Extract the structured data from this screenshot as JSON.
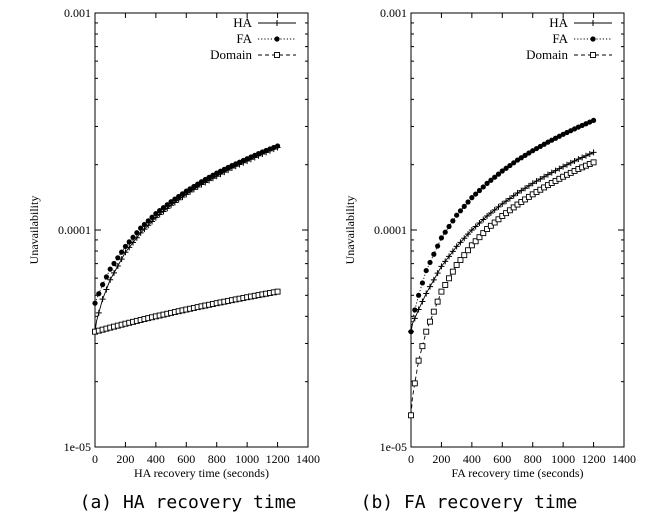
{
  "chart_data": [
    {
      "type": "line",
      "caption": "(a) HA recovery time",
      "xlabel": "HA recovery time (seconds)",
      "ylabel": "Unavailability",
      "xlim": [
        0,
        1400
      ],
      "ylim": [
        1e-05,
        0.001
      ],
      "yscale": "log",
      "x_ticks": [
        "0",
        "200",
        "400",
        "600",
        "800",
        "1000",
        "1200",
        "1400"
      ],
      "y_ticks": [
        "1e-05",
        "0.0001",
        "0.001"
      ],
      "legend_position": "top-right",
      "series": [
        {
          "name": "HA",
          "marker": "plus",
          "dash": "solid",
          "points": [
            [
              0,
              3.4e-05
            ],
            [
              10,
              3.8e-05
            ],
            [
              50,
              4.8e-05
            ],
            [
              100,
              5.9e-05
            ],
            [
              200,
              7.9e-05
            ],
            [
              300,
              9.7e-05
            ],
            [
              400,
              0.000114
            ],
            [
              500,
              0.00013
            ],
            [
              600,
              0.000146
            ],
            [
              700,
              0.000162
            ],
            [
              800,
              0.000177
            ],
            [
              900,
              0.000193
            ],
            [
              1000,
              0.000208
            ],
            [
              1100,
              0.000224
            ],
            [
              1200,
              0.00024
            ]
          ]
        },
        {
          "name": "FA",
          "marker": "dot",
          "dash": "dotted",
          "points": [
            [
              0,
              4.6e-05
            ],
            [
              10,
              4.8e-05
            ],
            [
              50,
              5.6e-05
            ],
            [
              100,
              6.6e-05
            ],
            [
              200,
              8.4e-05
            ],
            [
              300,
              0.000102
            ],
            [
              400,
              0.000119
            ],
            [
              500,
              0.000135
            ],
            [
              600,
              0.000151
            ],
            [
              700,
              0.000167
            ],
            [
              800,
              0.000183
            ],
            [
              900,
              0.000198
            ],
            [
              1000,
              0.000213
            ],
            [
              1100,
              0.000229
            ],
            [
              1200,
              0.000244
            ]
          ]
        },
        {
          "name": "Domain",
          "marker": "square",
          "dash": "dashed",
          "points": [
            [
              0,
              3.4e-05
            ],
            [
              100,
              3.55e-05
            ],
            [
              200,
              3.7e-05
            ],
            [
              300,
              3.85e-05
            ],
            [
              400,
              4e-05
            ],
            [
              500,
              4.15e-05
            ],
            [
              600,
              4.3e-05
            ],
            [
              700,
              4.45e-05
            ],
            [
              800,
              4.6e-05
            ],
            [
              900,
              4.75e-05
            ],
            [
              1000,
              4.9e-05
            ],
            [
              1100,
              5.05e-05
            ],
            [
              1200,
              5.2e-05
            ]
          ]
        }
      ]
    },
    {
      "type": "line",
      "caption": "(b) FA recovery time",
      "xlabel": "FA recovery time (seconds)",
      "ylabel": "Unavailability",
      "xlim": [
        0,
        1400
      ],
      "ylim": [
        1e-05,
        0.001
      ],
      "yscale": "log",
      "x_ticks": [
        "0",
        "200",
        "400",
        "600",
        "800",
        "1000",
        "1200",
        "1400"
      ],
      "y_ticks": [
        "1e-05",
        "0.0001",
        "0.001"
      ],
      "legend_position": "top-right",
      "series": [
        {
          "name": "HA",
          "marker": "plus",
          "dash": "solid",
          "points": [
            [
              0,
              3.4e-05
            ],
            [
              10,
              3.7e-05
            ],
            [
              50,
              4.3e-05
            ],
            [
              100,
              5.1e-05
            ],
            [
              200,
              6.8e-05
            ],
            [
              300,
              8.4e-05
            ],
            [
              400,
              0.0001
            ],
            [
              500,
              0.000116
            ],
            [
              600,
              0.000132
            ],
            [
              700,
              0.000148
            ],
            [
              800,
              0.000164
            ],
            [
              900,
              0.00018
            ],
            [
              1000,
              0.000196
            ],
            [
              1100,
              0.000212
            ],
            [
              1200,
              0.000228
            ]
          ]
        },
        {
          "name": "FA",
          "marker": "dot",
          "dash": "dotted",
          "points": [
            [
              0,
              3.4e-05
            ],
            [
              10,
              3.9e-05
            ],
            [
              50,
              5e-05
            ],
            [
              100,
              6.5e-05
            ],
            [
              200,
              9.2e-05
            ],
            [
              300,
              0.000117
            ],
            [
              400,
              0.000141
            ],
            [
              500,
              0.000164
            ],
            [
              600,
              0.000187
            ],
            [
              700,
              0.00021
            ],
            [
              800,
              0.000232
            ],
            [
              900,
              0.000254
            ],
            [
              1000,
              0.000276
            ],
            [
              1100,
              0.000298
            ],
            [
              1200,
              0.00032
            ]
          ]
        },
        {
          "name": "Domain",
          "marker": "square",
          "dash": "dashed",
          "points": [
            [
              0,
              1.4e-05
            ],
            [
              10,
              1.7e-05
            ],
            [
              50,
              2.5e-05
            ],
            [
              100,
              3.4e-05
            ],
            [
              200,
              5.2e-05
            ],
            [
              300,
              6.9e-05
            ],
            [
              400,
              8.5e-05
            ],
            [
              500,
              0.000101
            ],
            [
              600,
              0.000116
            ],
            [
              700,
              0.000131
            ],
            [
              800,
              0.000146
            ],
            [
              900,
              0.000161
            ],
            [
              1000,
              0.000176
            ],
            [
              1100,
              0.000191
            ],
            [
              1200,
              0.000205
            ]
          ]
        }
      ]
    }
  ]
}
